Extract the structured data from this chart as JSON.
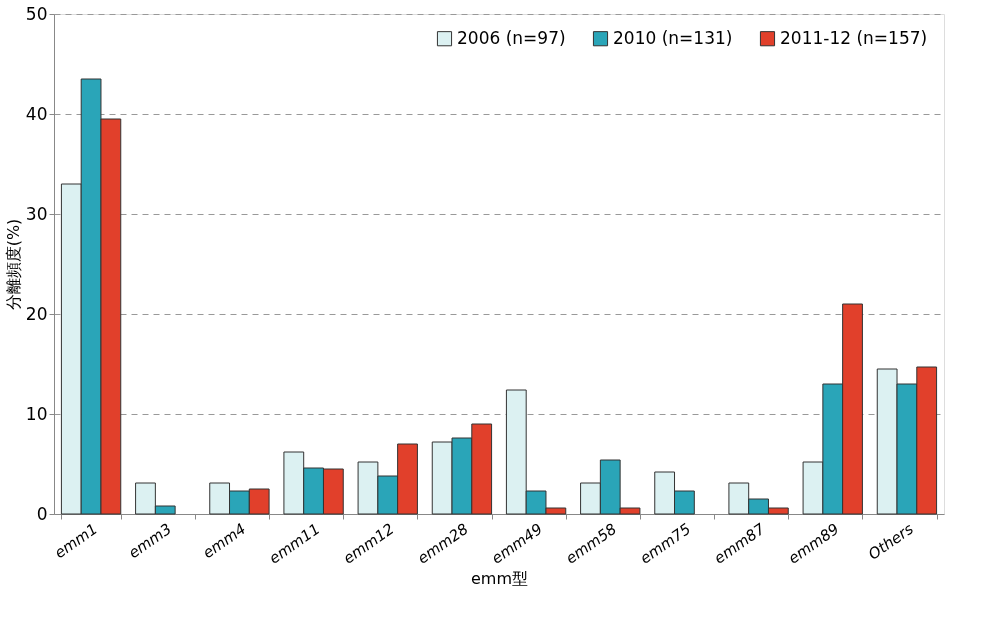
{
  "chart_data": {
    "type": "bar",
    "xlabel": "emm型",
    "ylabel": "分離頻度(%)",
    "categories": [
      "emm1",
      "emm3",
      "emm4",
      "emm11",
      "emm12",
      "emm28",
      "emm49",
      "emm58",
      "emm75",
      "emm87",
      "emm89",
      "Others"
    ],
    "series": [
      {
        "name": "2006 (n=97)",
        "color": "#dcf1f2",
        "values": [
          33.0,
          3.1,
          3.1,
          6.2,
          5.2,
          7.2,
          12.4,
          3.1,
          4.2,
          3.1,
          5.2,
          14.5
        ]
      },
      {
        "name": "2010 (n=131)",
        "color": "#2aa5b8",
        "values": [
          43.5,
          0.8,
          2.3,
          4.6,
          3.8,
          7.6,
          2.3,
          5.4,
          2.3,
          1.5,
          13.0,
          13.0
        ]
      },
      {
        "name": "2011-12 (n=157)",
        "color": "#e1402b",
        "values": [
          39.5,
          null,
          2.5,
          4.5,
          7.0,
          9.0,
          0.6,
          0.6,
          null,
          0.6,
          21.0,
          14.7
        ]
      }
    ],
    "ylim": [
      0,
      50
    ],
    "yticks": [
      0,
      10,
      20,
      30,
      40,
      50
    ],
    "grid": "y",
    "legend": "top right"
  }
}
